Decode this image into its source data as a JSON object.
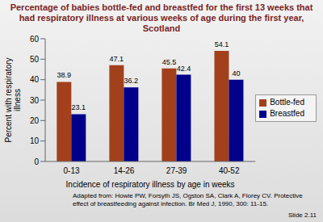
{
  "chart_data": {
    "type": "bar",
    "title": "Percentage of babies bottle-fed and breastfed for the first 13 weeks that had respiratory illness at various weeks of age during the first year, Scotland",
    "x_label": "Incidence of respiratory illness by age in weeks",
    "y_label": "Percent with respiratory illness",
    "categories": [
      "0-13",
      "14-26",
      "27-39",
      "40-52"
    ],
    "series": [
      {
        "name": "Bottle-fed",
        "color": "#a3401c",
        "values": [
          38.9,
          47.1,
          45.5,
          54.1
        ]
      },
      {
        "name": "Breastfed",
        "color": "#00008b",
        "values": [
          23.1,
          36.2,
          42.4,
          40
        ]
      }
    ],
    "ylim": [
      0,
      60
    ],
    "yticks": [
      0,
      10,
      20,
      30,
      40,
      50,
      60
    ],
    "grid": false,
    "legend": "right",
    "data_labels": true,
    "annotations": [
      "Adapted from: Howie PW, Forsyth JS, Ogston SA, Clark A, Florey CV. Protective effect of breastfeeding against infection. Br Med J, 1990, 300: 11-15.",
      "Slide 2.11"
    ]
  }
}
